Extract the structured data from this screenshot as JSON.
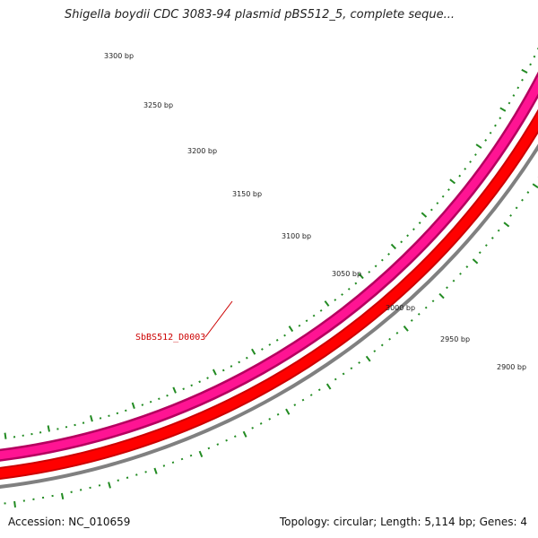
{
  "title": "Shigella boydii CDC 3083-94 plasmid pBS512_5, complete seque...",
  "footer": {
    "accession": "Accession: NC_010659",
    "summary": "Topology: circular; Length: 5,114 bp; Genes: 4"
  },
  "colors": {
    "backbone": "#808080",
    "cds_forward": "#ff0000",
    "cds_forward_dark": "#cc0000",
    "cds_reverse": "#ff1493",
    "cds_reverse_dark": "#b5005f",
    "tick": "#228b22",
    "gene_label": "#cc0000"
  },
  "scale": {
    "labels": [
      "3300 bp",
      "3250 bp",
      "3200 bp",
      "3150 bp",
      "3100 bp",
      "3050 bp",
      "3000 bp",
      "2950 bp",
      "2900 bp"
    ]
  },
  "gene_label": "SbBS512_D0003"
}
